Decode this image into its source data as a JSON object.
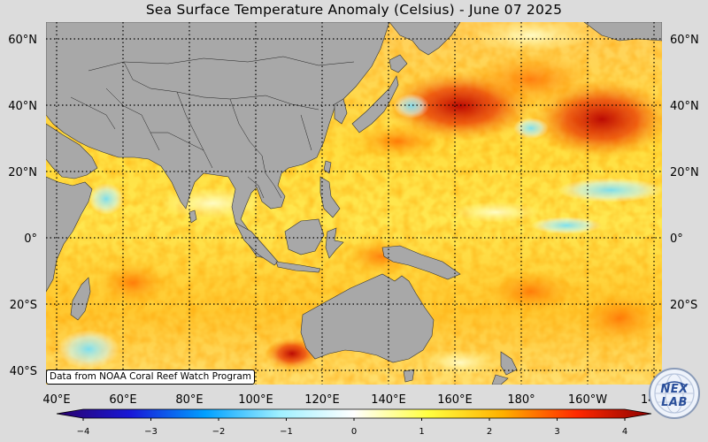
{
  "title": "Sea Surface Temperature Anomaly (Celsius) - June 07 2025",
  "credit": "Data from NOAA Coral Reef Watch Program",
  "logo_text": "NEX LAB",
  "axes": {
    "lat_labels_left": [
      "60°N",
      "40°N",
      "20°N",
      "0°",
      "20°S",
      "40°S"
    ],
    "lat_labels_right": [
      "60°N",
      "40°N",
      "20°N",
      "0°",
      "20°S"
    ],
    "lon_labels": [
      "40°E",
      "60°E",
      "80°E",
      "100°E",
      "120°E",
      "140°E",
      "160°E",
      "180°",
      "160°W",
      "14"
    ]
  },
  "colorbar": {
    "tick_labels": [
      "−4",
      "−3",
      "−2",
      "−1",
      "0",
      "1",
      "2",
      "3",
      "4"
    ],
    "colors": [
      "#2a006a",
      "#1818d8",
      "#00a0ff",
      "#9ff0ff",
      "#ffffff",
      "#ffff40",
      "#ffb000",
      "#ff2800",
      "#8c0000"
    ]
  },
  "colors": {
    "land": "#a8a8a8",
    "background": "#dcdcdc",
    "grid": "#000000"
  }
}
